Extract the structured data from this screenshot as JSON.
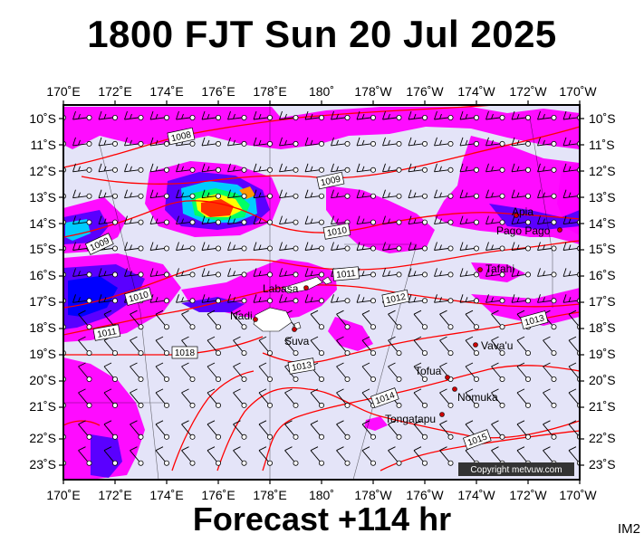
{
  "header": {
    "title": "1800 FJT Sun 20 Jul 2025"
  },
  "footer": {
    "forecast": "Forecast +114 hr",
    "code": "IM2"
  },
  "map": {
    "lon_labels": [
      "170˚E",
      "172˚E",
      "174˚E",
      "176˚E",
      "178˚E",
      "180˚",
      "178˚W",
      "176˚W",
      "174˚W",
      "172˚W",
      "170˚W"
    ],
    "lat_labels": [
      "10˚S",
      "11˚S",
      "12˚S",
      "13˚S",
      "14˚S",
      "15˚S",
      "16˚S",
      "17˚S",
      "18˚S",
      "19˚S",
      "20˚S",
      "21˚S",
      "22˚S",
      "23˚S"
    ],
    "isobars": [
      {
        "label": "1008"
      },
      {
        "label": "1009"
      },
      {
        "label": "1009"
      },
      {
        "label": "1010"
      },
      {
        "label": "1010"
      },
      {
        "label": "1011"
      },
      {
        "label": "1011"
      },
      {
        "label": "1012"
      },
      {
        "label": "1013"
      },
      {
        "label": "1013"
      },
      {
        "label": "1014"
      },
      {
        "label": "1015"
      },
      {
        "label": "1018"
      }
    ],
    "places": [
      {
        "name": "Apia"
      },
      {
        "name": "Pago Pago"
      },
      {
        "name": "Tafahi"
      },
      {
        "name": "Labasa"
      },
      {
        "name": "Nadi"
      },
      {
        "name": "Suva"
      },
      {
        "name": "Vava'u"
      },
      {
        "name": "Tofua"
      },
      {
        "name": "Nomuka"
      },
      {
        "name": "Tongatapu"
      }
    ],
    "copyright": "Copyright metvuw.com",
    "colors": {
      "background": "#e4e4f8",
      "rain_light": "#ff00ff",
      "rain_mid": "#0000ff",
      "rain_heavy_1": "#00ffff",
      "rain_heavy_2": "#00ff00",
      "rain_heavy_3": "#ffff00",
      "rain_heavy_4": "#ff3300",
      "isobar": "#ff0000"
    }
  }
}
